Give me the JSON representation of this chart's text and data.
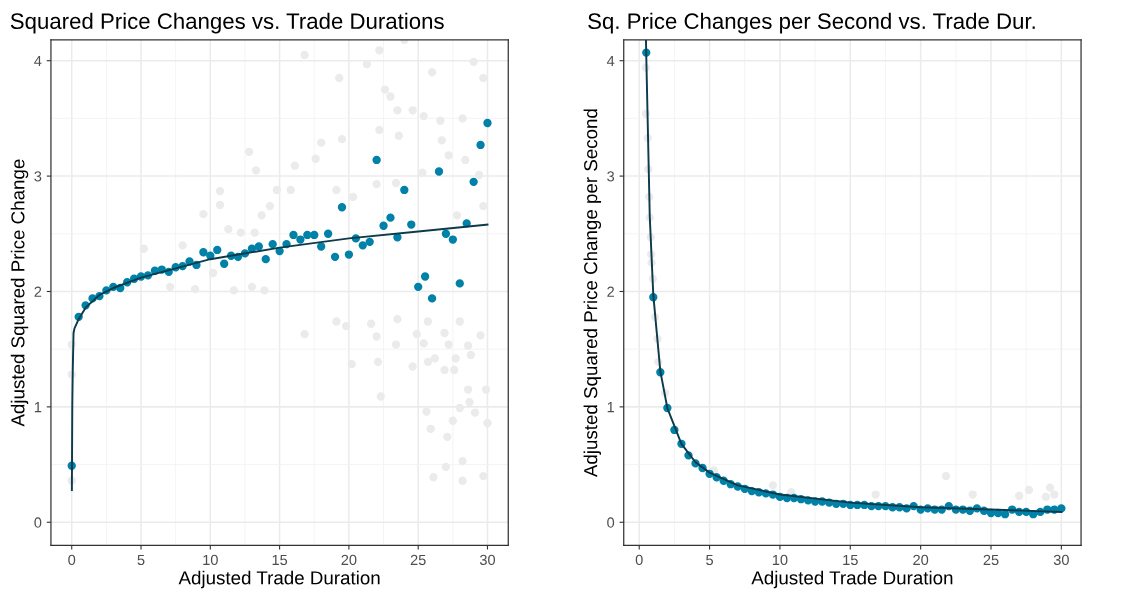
{
  "chart_data": [
    {
      "type": "scatter",
      "title": "Squared Price Changes vs. Trade Durations",
      "xlabel": "Adjusted Trade Duration",
      "ylabel": "Adjusted Squared Price Change",
      "xlim": [
        -1.5,
        31.5
      ],
      "ylim": [
        -0.2,
        4.18
      ],
      "xticks": [
        0,
        5,
        10,
        15,
        20,
        25,
        30
      ],
      "yticks": [
        0,
        1,
        2,
        3,
        4
      ],
      "grid": true,
      "legend": false,
      "series": [
        {
          "color": "#ebebeb",
          "x": [
            16.8,
            22.2,
            24,
            21.3,
            26,
            29,
            29.7,
            19.3,
            22.6,
            23,
            23.5,
            24.6,
            25.4,
            26.6,
            28.2,
            18,
            19.5,
            17.6,
            16.1,
            22.2,
            23.6,
            26.7,
            27.2,
            28.4,
            22,
            23.4,
            25.3,
            29.4,
            14.8,
            15.8,
            19.1,
            20.3,
            29.7,
            27.8,
            16.8,
            19.1,
            19.8,
            21.6,
            22,
            23.5,
            23.4,
            24.9,
            25.4,
            25.7,
            26.9,
            27.2,
            28,
            28.6,
            29.5,
            20.2,
            22.1,
            22.3,
            24.6,
            25.7,
            26.2,
            26.9,
            27.6,
            27.7,
            28.8,
            25.6,
            25.9,
            27.1,
            27.5,
            28,
            28.6,
            28.7,
            29.1,
            29.9,
            30,
            26.1,
            27,
            28.2,
            28.2,
            29.7,
            12.8,
            13.3,
            9.5,
            10.7,
            10.7,
            13.7,
            14.3,
            8.9,
            11.7,
            13.9,
            7.1,
            5.2,
            8,
            11.3,
            12.2,
            13.2,
            10.2,
            13,
            0,
            0,
            0
          ],
          "values": [
            4.05,
            4.09,
            4.18,
            3.97,
            3.9,
            3.99,
            3.85,
            3.85,
            3.75,
            3.69,
            3.57,
            3.57,
            3.52,
            3.48,
            3.5,
            3.29,
            3.32,
            3.15,
            3.09,
            3.4,
            3.35,
            3.31,
            3.18,
            3.14,
            2.93,
            2.94,
            3.03,
            3.01,
            2.88,
            2.88,
            2.88,
            2.82,
            2.74,
            2.66,
            1.63,
            1.74,
            1.7,
            1.72,
            1.61,
            1.76,
            1.54,
            1.63,
            1.55,
            1.74,
            1.64,
            1.54,
            1.74,
            1.53,
            1.62,
            1.37,
            1.39,
            1.09,
            1.35,
            1.39,
            1.42,
            1.32,
            1.32,
            1.42,
            1.45,
            0.96,
            0.81,
            0.74,
            0.88,
            0.99,
            1.15,
            1.04,
            0.95,
            1.15,
            0.86,
            0.39,
            0.48,
            0.53,
            0.36,
            0.4,
            3.21,
            3.05,
            2.67,
            2.87,
            2.75,
            2.66,
            2.74,
            2.02,
            2.01,
            2.01,
            2.04,
            2.37,
            2.4,
            2.54,
            2.51,
            2.51,
            2.16,
            2.04,
            1.28,
            1.54,
            0.36
          ]
        },
        {
          "color": "#0081a7",
          "x": [
            0,
            0.5,
            1,
            1.5,
            2,
            2.5,
            3,
            3.5,
            4,
            4.5,
            5,
            5.5,
            6,
            6.5,
            7,
            7.5,
            8,
            8.5,
            9,
            9.5,
            10,
            10.5,
            11,
            11.5,
            12,
            12.5,
            13,
            13.5,
            14,
            14.5,
            15,
            15.5,
            16,
            16.5,
            17,
            17.5,
            18,
            18.5,
            19,
            19.5,
            20,
            20.5,
            21,
            21.5,
            22,
            22.5,
            23,
            23.5,
            24,
            24.5,
            25,
            25.5,
            26,
            26.5,
            27,
            27.5,
            28,
            28.5,
            29,
            29.5,
            30
          ],
          "values": [
            0.49,
            1.78,
            1.88,
            1.94,
            1.96,
            2.01,
            2.04,
            2.03,
            2.08,
            2.11,
            2.13,
            2.14,
            2.18,
            2.19,
            2.17,
            2.21,
            2.22,
            2.26,
            2.23,
            2.34,
            2.31,
            2.36,
            2.24,
            2.31,
            2.3,
            2.33,
            2.37,
            2.39,
            2.28,
            2.41,
            2.35,
            2.41,
            2.49,
            2.45,
            2.49,
            2.49,
            2.39,
            2.5,
            2.3,
            2.73,
            2.32,
            2.46,
            2.4,
            2.43,
            3.14,
            2.57,
            2.64,
            2.47,
            2.88,
            2.58,
            2.04,
            2.13,
            1.94,
            3.04,
            2.5,
            2.45,
            2.07,
            2.59,
            2.95,
            3.27,
            3.46
          ]
        },
        {
          "type": "line",
          "color": "#0d3b4c",
          "x": [
            0.01,
            0.04,
            0.07,
            0.13,
            0.2,
            0.5,
            1,
            2,
            3,
            5,
            7.5,
            10,
            15,
            20,
            25,
            30
          ],
          "values": [
            0.28,
            1.0,
            1.29,
            1.64,
            1.68,
            1.76,
            1.86,
            1.97,
            2.03,
            2.12,
            2.2,
            2.28,
            2.38,
            2.46,
            2.52,
            2.58
          ]
        }
      ]
    },
    {
      "type": "scatter",
      "title": "Sq. Price Changes per Second vs. Trade Dur.",
      "xlabel": "Adjusted Trade Duration",
      "ylabel": "Adjusted Squared Price Change per Second",
      "xlim": [
        -1.1,
        31.4
      ],
      "ylim": [
        -0.2,
        4.18
      ],
      "xticks": [
        0,
        5,
        10,
        15,
        20,
        25,
        30
      ],
      "yticks": [
        0,
        1,
        2,
        3,
        4
      ],
      "grid": true,
      "legend": false,
      "series": [
        {
          "color": "#ebebeb",
          "x": [
            0.47,
            0.47,
            0.6,
            0.65,
            0.71,
            0.75,
            0.82,
            0.85,
            0.88,
            0.97,
            1.12,
            1.3,
            1.36,
            1.84,
            9.5,
            10.8,
            5.3,
            21.8,
            23.7,
            16.8,
            27.7,
            29.2,
            27,
            29.5,
            28.9
          ],
          "values": [
            3.94,
            3.54,
            3.33,
            3.06,
            2.82,
            2.64,
            2.47,
            2.32,
            2.25,
            2.11,
            1.78,
            1.59,
            1.39,
            1.12,
            0.32,
            0.26,
            0.45,
            0.4,
            0.24,
            0.24,
            0.28,
            0.3,
            0.23,
            0.24,
            0.22
          ]
        },
        {
          "color": "#0081a7",
          "x": [
            0.5,
            1,
            1.5,
            2,
            2.5,
            3,
            3.5,
            4,
            4.5,
            5,
            5.5,
            6,
            6.5,
            7,
            7.5,
            8,
            8.5,
            9,
            9.5,
            10,
            10.5,
            11,
            11.5,
            12,
            12.5,
            13,
            13.5,
            14,
            14.5,
            15,
            15.5,
            16,
            16.5,
            17,
            17.5,
            18,
            18.5,
            19,
            19.5,
            20,
            20.5,
            21,
            21.5,
            22,
            22.5,
            23,
            23.5,
            24,
            24.5,
            25,
            25.5,
            26,
            26.5,
            27,
            27.5,
            28,
            28.5,
            29,
            29.5,
            30
          ],
          "values": [
            4.07,
            1.95,
            1.3,
            0.99,
            0.8,
            0.68,
            0.58,
            0.51,
            0.47,
            0.42,
            0.39,
            0.36,
            0.33,
            0.31,
            0.29,
            0.27,
            0.26,
            0.25,
            0.24,
            0.22,
            0.21,
            0.21,
            0.2,
            0.19,
            0.18,
            0.18,
            0.17,
            0.16,
            0.16,
            0.15,
            0.15,
            0.15,
            0.14,
            0.14,
            0.14,
            0.13,
            0.13,
            0.12,
            0.14,
            0.11,
            0.12,
            0.11,
            0.11,
            0.14,
            0.11,
            0.11,
            0.1,
            0.12,
            0.1,
            0.08,
            0.08,
            0.07,
            0.11,
            0.09,
            0.09,
            0.07,
            0.09,
            0.11,
            0.11,
            0.12
          ]
        },
        {
          "type": "line",
          "color": "#0d3b4c",
          "x": [
            0.48,
            0.5,
            0.75,
            1,
            1.5,
            2,
            3,
            4,
            5,
            7,
            10,
            15,
            20,
            25,
            30
          ],
          "values": [
            4.18,
            4.05,
            2.65,
            1.97,
            1.31,
            0.99,
            0.68,
            0.52,
            0.43,
            0.32,
            0.24,
            0.17,
            0.13,
            0.11,
            0.09
          ]
        }
      ]
    }
  ]
}
